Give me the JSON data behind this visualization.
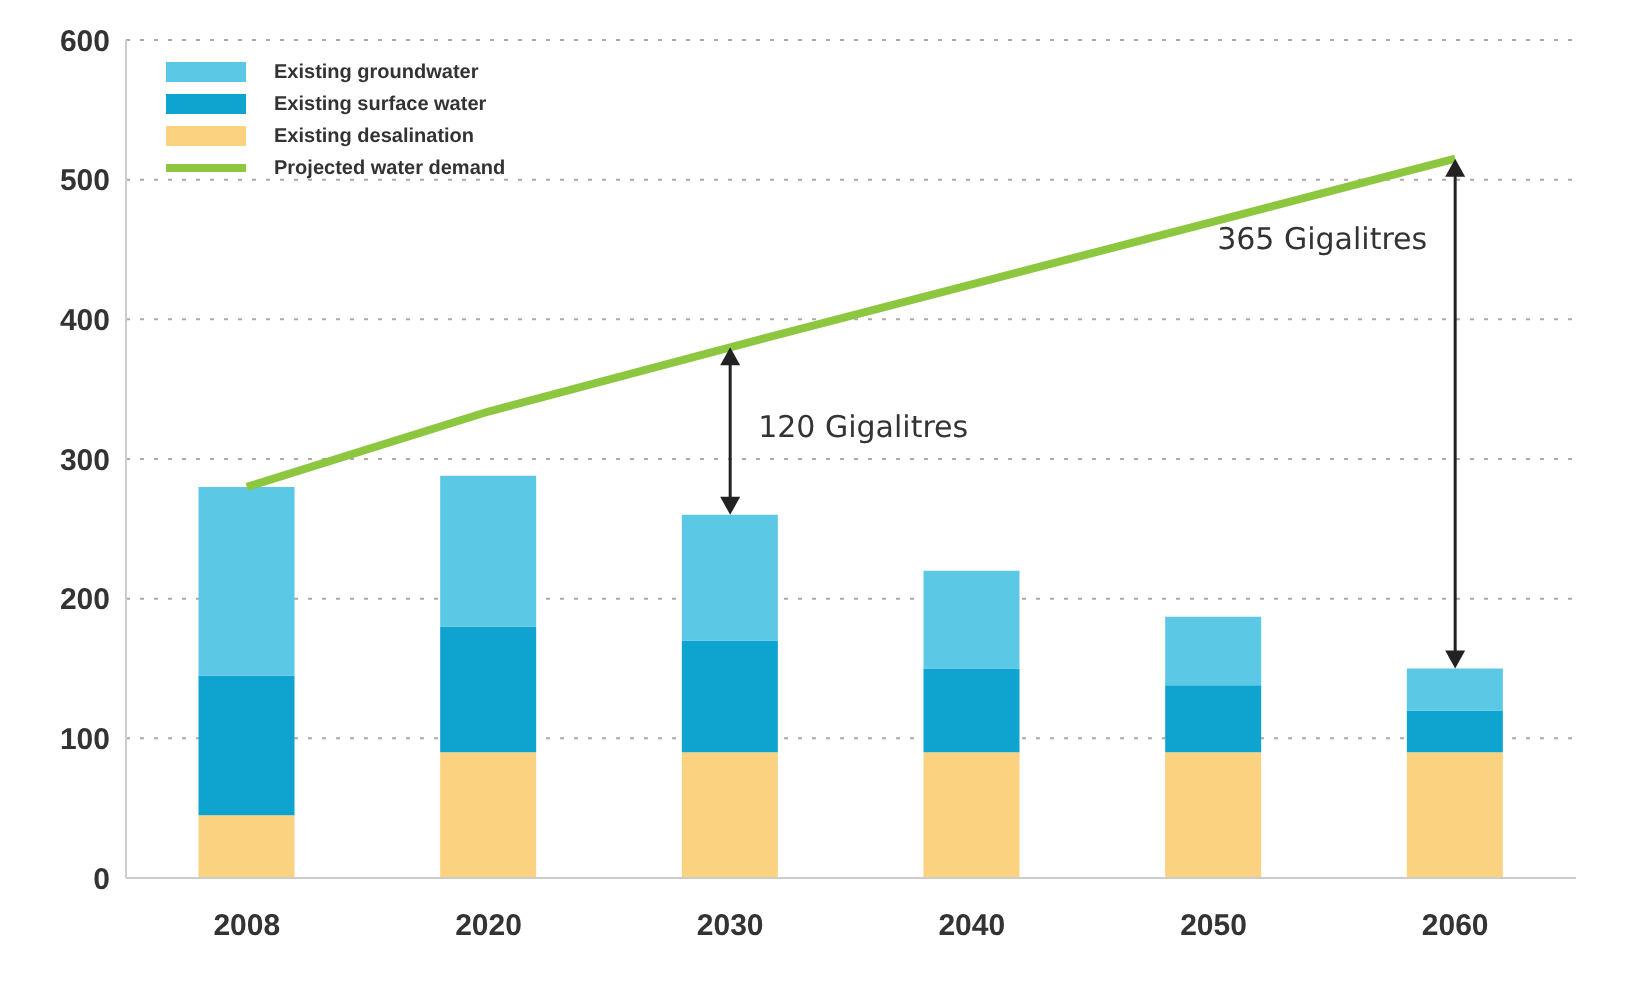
{
  "chart_data": {
    "type": "bar",
    "stacked": true,
    "categories": [
      "2008",
      "2020",
      "2030",
      "2040",
      "2050",
      "2060"
    ],
    "series": [
      {
        "name": "Existing desalination",
        "color": "#fbd27f",
        "values": [
          45,
          90,
          90,
          90,
          90,
          90
        ]
      },
      {
        "name": "Existing surface water",
        "color": "#0fa3cf",
        "values": [
          100,
          90,
          80,
          60,
          48,
          30
        ]
      },
      {
        "name": "Existing groundwater",
        "color": "#5bc8e6",
        "values": [
          135,
          108,
          90,
          70,
          49,
          30
        ]
      },
      {
        "name": "Projected water demand",
        "type": "line",
        "color": "#8dc63f",
        "values": [
          280,
          334,
          380,
          425,
          470,
          515
        ]
      }
    ],
    "ylim": [
      0,
      600
    ],
    "yticks": [
      0,
      100,
      200,
      300,
      400,
      500,
      600
    ],
    "grid": "y",
    "legend": "top left",
    "marker": "none",
    "line_style": "solid",
    "annotations": [
      {
        "text": "120 Gigalitres",
        "x": "2030",
        "y": 380
      },
      {
        "text": "365 Gigalitres",
        "x": "2060",
        "y": 515
      }
    ]
  }
}
